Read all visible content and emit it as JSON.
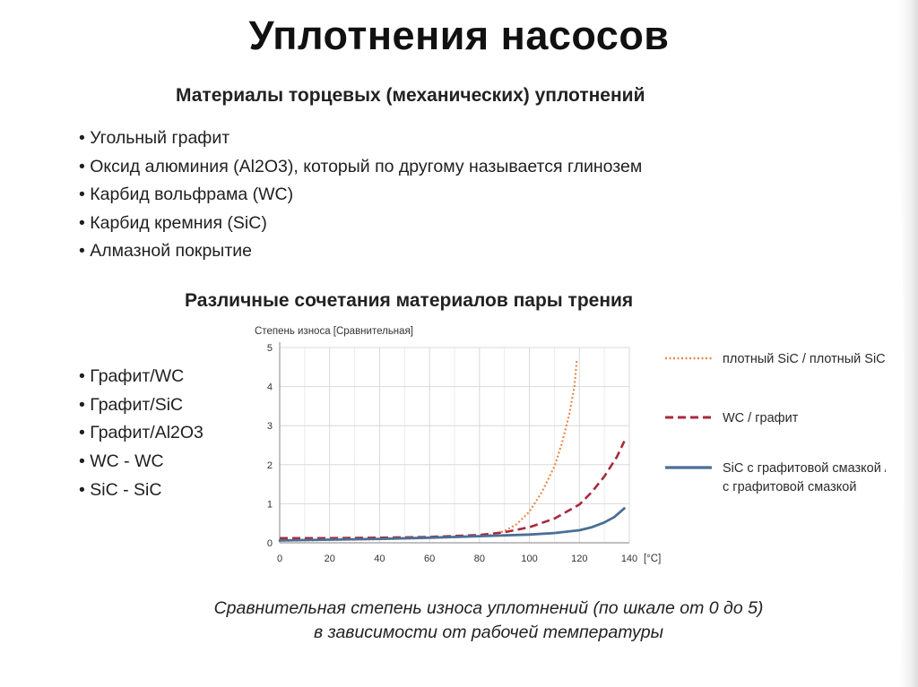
{
  "slide": {
    "title": "Уплотнения насосов",
    "subtitle": "Материалы торцевых (механических) уплотнений",
    "materials": [
      "Угольный графит",
      "Оксид алюминия (Al2O3), который по другому называется глинозем",
      "Карбид вольфрама (WC)",
      "Карбид кремния (SiC)",
      "Алмазной покрытие"
    ],
    "pairs_heading": "Различные сочетания материалов пары трения",
    "pairs": [
      "Графит/WC",
      "Графит/SiC",
      "Графит/Al2O3",
      "WC - WC",
      "SiC - SiC"
    ],
    "caption_line1": "Сравнительная степень износа уплотнений (по шкале от 0 до 5)",
    "caption_line2": "в зависимости от рабочей температуры"
  },
  "chart_data": {
    "type": "line",
    "ylabel": "Степень износа [Сравнительная]",
    "x_unit": "[°C]",
    "xlim": [
      0,
      140
    ],
    "ylim": [
      0,
      5
    ],
    "x_ticks": [
      "0",
      "20",
      "40",
      "60",
      "80",
      "100",
      "120",
      "140"
    ],
    "y_ticks": [
      "0",
      "1",
      "2",
      "3",
      "4",
      "5"
    ],
    "grid": true,
    "legend_position": "right",
    "series": [
      {
        "name": "плотный SiC / плотный SiC",
        "color": "#e8894a",
        "style": "dotted",
        "x": [
          0,
          20,
          40,
          60,
          70,
          80,
          85,
          90,
          95,
          100,
          105,
          110,
          113,
          116,
          118,
          119
        ],
        "y": [
          0.05,
          0.07,
          0.09,
          0.12,
          0.14,
          0.17,
          0.21,
          0.3,
          0.48,
          0.8,
          1.3,
          1.95,
          2.55,
          3.3,
          4.0,
          4.7
        ]
      },
      {
        "name": "WC / графит",
        "color": "#a8293e",
        "style": "dashed",
        "x": [
          0,
          20,
          40,
          60,
          80,
          90,
          100,
          110,
          120,
          125,
          130,
          135,
          138
        ],
        "y": [
          0.12,
          0.12,
          0.13,
          0.15,
          0.2,
          0.27,
          0.4,
          0.62,
          0.98,
          1.3,
          1.7,
          2.2,
          2.6
        ]
      },
      {
        "name": "SiC с графитовой смазкой /SiC\nс графитовой смазкой",
        "legend_lines": [
          "SiC с графитовой смазкой /SiC",
          "с  графитовой смазкой"
        ],
        "color": "#4a6f96",
        "style": "solid",
        "x": [
          0,
          20,
          40,
          60,
          80,
          100,
          110,
          120,
          125,
          130,
          134,
          138
        ],
        "y": [
          0.06,
          0.08,
          0.1,
          0.13,
          0.17,
          0.21,
          0.25,
          0.32,
          0.4,
          0.52,
          0.66,
          0.88
        ]
      }
    ]
  }
}
